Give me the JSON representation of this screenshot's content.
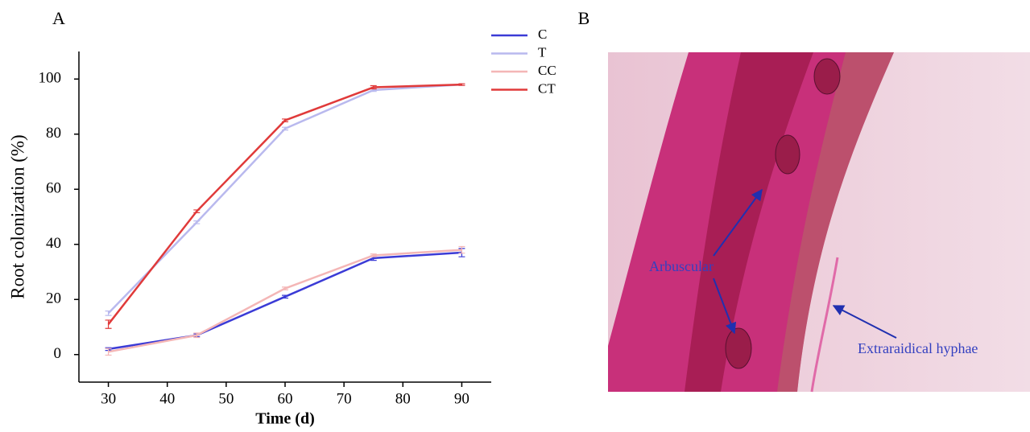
{
  "panel_labels": [
    "A",
    "B"
  ],
  "chart_data": {
    "type": "line",
    "x_label": "Time (d)",
    "y_label": "Root colonization (%)",
    "x": [
      30,
      45,
      60,
      75,
      90
    ],
    "series": [
      {
        "name": "C",
        "color": "#3b3bd6",
        "values": [
          2,
          7,
          21,
          35,
          37
        ],
        "errors": [
          0.5,
          0.5,
          0.5,
          0.8,
          1.5
        ]
      },
      {
        "name": "T",
        "color": "#b9b9ee",
        "values": [
          15,
          48,
          82,
          96,
          98
        ],
        "errors": [
          0.8,
          0.5,
          0.5,
          0.5,
          0.3
        ]
      },
      {
        "name": "CC",
        "color": "#f4b6b6",
        "values": [
          1,
          7,
          24,
          36,
          38
        ],
        "errors": [
          1.2,
          0.8,
          0.5,
          0.5,
          1.2
        ]
      },
      {
        "name": "CT",
        "color": "#e03a3a",
        "values": [
          11,
          52,
          85,
          97,
          98
        ],
        "errors": [
          1.5,
          0.5,
          0.5,
          0.6,
          0.3
        ]
      }
    ],
    "xlim": [
      25,
      95
    ],
    "ylim": [
      -10,
      110
    ],
    "xticks": [
      30,
      40,
      50,
      60,
      70,
      80,
      90
    ],
    "yticks": [
      0,
      20,
      40,
      60,
      80,
      100
    ],
    "legend": "top-right"
  },
  "micrograph": {
    "annotations": [
      "Arbuscular",
      "Extraraidical hyphae"
    ]
  }
}
